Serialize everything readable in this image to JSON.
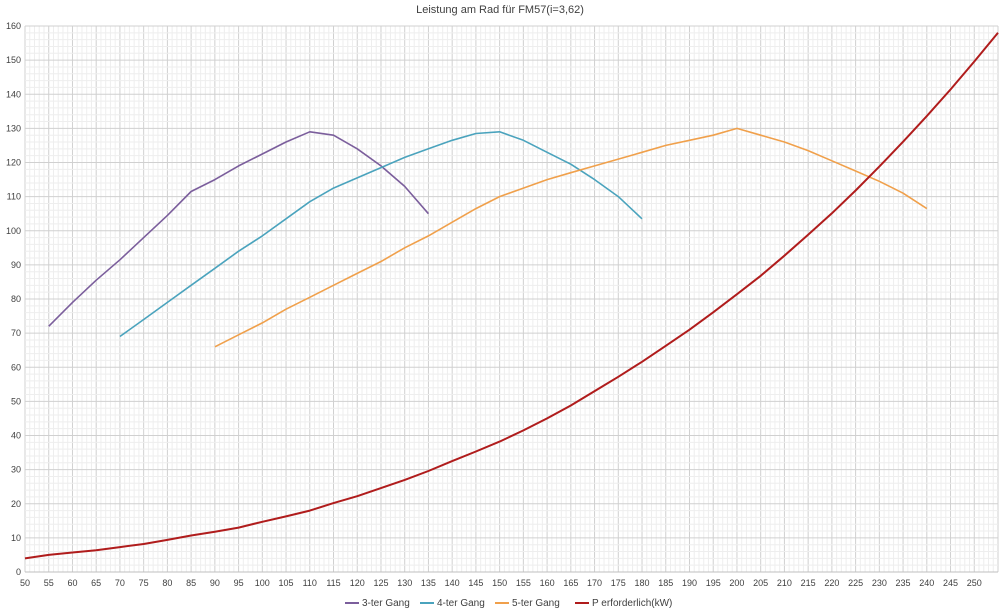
{
  "chart_data": {
    "type": "line",
    "title": "Leistung am Rad für FM57(i=3,62)",
    "xlabel": "",
    "ylabel": "",
    "xlim": [
      50,
      255
    ],
    "ylim": [
      0,
      160
    ],
    "x_ticks": [
      50,
      55,
      60,
      65,
      70,
      75,
      80,
      85,
      90,
      95,
      100,
      105,
      110,
      115,
      120,
      125,
      130,
      135,
      140,
      145,
      150,
      155,
      160,
      165,
      170,
      175,
      180,
      185,
      190,
      195,
      200,
      205,
      210,
      215,
      220,
      225,
      230,
      235,
      240,
      245,
      250
    ],
    "y_ticks": [
      0,
      10,
      20,
      30,
      40,
      50,
      60,
      70,
      80,
      90,
      100,
      110,
      120,
      130,
      140,
      150,
      160
    ],
    "grid": true,
    "legend_position": "bottom",
    "series": [
      {
        "name": "3-ter Gang",
        "color": "#7b5e9c",
        "x": [
          55,
          60,
          65,
          70,
          75,
          80,
          85,
          90,
          95,
          100,
          105,
          110,
          115,
          120,
          125,
          130,
          135
        ],
        "y": [
          72,
          79,
          85.5,
          91.5,
          98,
          104.5,
          111.5,
          115,
          119,
          122.5,
          126,
          129,
          128,
          124,
          119,
          113,
          105
        ]
      },
      {
        "name": "4-ter Gang",
        "color": "#4aa3bd",
        "x": [
          70,
          75,
          80,
          85,
          90,
          95,
          100,
          105,
          110,
          115,
          120,
          125,
          130,
          135,
          140,
          145,
          150,
          155,
          160,
          165,
          170,
          175,
          180
        ],
        "y": [
          69,
          74,
          79,
          84,
          89,
          94,
          98.5,
          103.5,
          108.5,
          112.5,
          115.5,
          118.5,
          121.5,
          124,
          126.5,
          128.5,
          129,
          126.5,
          123,
          119.5,
          115,
          110,
          103.5
        ]
      },
      {
        "name": "5-ter Gang",
        "color": "#f0a04b",
        "x": [
          90,
          95,
          100,
          105,
          110,
          115,
          120,
          125,
          130,
          135,
          140,
          145,
          150,
          155,
          160,
          165,
          170,
          175,
          180,
          185,
          190,
          195,
          200,
          205,
          210,
          215,
          220,
          225,
          230,
          235,
          240
        ],
        "y": [
          66,
          69.5,
          73,
          77,
          80.5,
          84,
          87.5,
          91,
          95,
          98.5,
          102.5,
          106.5,
          110,
          112.5,
          115,
          117,
          119,
          121,
          123,
          125,
          126.5,
          128,
          130,
          128,
          126,
          123.5,
          120.5,
          117.5,
          114.5,
          111,
          106.5
        ]
      },
      {
        "name": "P erforderlich(kW)",
        "color": "#b01c1c",
        "x": [
          50,
          55,
          60,
          65,
          70,
          75,
          80,
          85,
          90,
          95,
          100,
          105,
          110,
          115,
          120,
          125,
          130,
          135,
          140,
          145,
          150,
          155,
          160,
          165,
          170,
          175,
          180,
          185,
          190,
          195,
          200,
          205,
          210,
          215,
          220,
          225,
          230,
          235,
          240,
          245,
          250,
          255
        ],
        "y": [
          4,
          5,
          5.7,
          6.4,
          7.3,
          8.2,
          9.4,
          10.7,
          11.8,
          13,
          14.7,
          16.3,
          18,
          20.2,
          22.2,
          24.6,
          27,
          29.6,
          32.5,
          35.3,
          38.2,
          41.5,
          45,
          48.8,
          53,
          57.2,
          61.6,
          66.3,
          71,
          76.1,
          81.4,
          86.8,
          92.7,
          98.8,
          105.1,
          111.8,
          118.8,
          126.1,
          133.6,
          141.4,
          149.6,
          158
        ]
      }
    ]
  }
}
